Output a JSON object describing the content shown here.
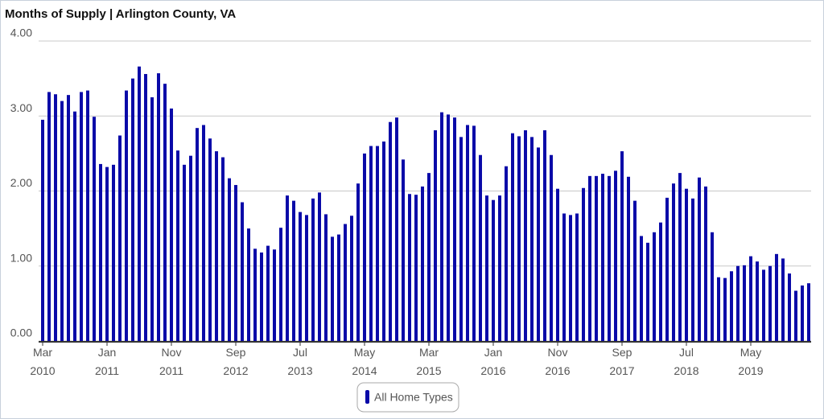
{
  "chart_data": {
    "type": "bar",
    "title": "Months of Supply | Arlington County, VA",
    "categories": [
      "Mar 2010",
      null,
      null,
      null,
      null,
      null,
      null,
      null,
      null,
      null,
      "Jan 2011",
      null,
      null,
      null,
      null,
      null,
      null,
      null,
      null,
      null,
      "Nov 2011",
      null,
      null,
      null,
      null,
      null,
      null,
      null,
      null,
      null,
      "Sep 2012",
      null,
      null,
      null,
      null,
      null,
      null,
      null,
      null,
      null,
      "Jul 2013",
      null,
      null,
      null,
      null,
      null,
      null,
      null,
      null,
      null,
      "May 2014",
      null,
      null,
      null,
      null,
      null,
      null,
      null,
      null,
      null,
      "Mar 2015",
      null,
      null,
      null,
      null,
      null,
      null,
      null,
      null,
      null,
      "Jan 2016",
      null,
      null,
      null,
      null,
      null,
      null,
      null,
      null,
      null,
      "Nov 2016",
      null,
      null,
      null,
      null,
      null,
      null,
      null,
      null,
      null,
      "Sep 2017",
      null,
      null,
      null,
      null,
      null,
      null,
      null,
      null,
      null,
      "Jul 2018",
      null,
      null,
      null,
      null,
      null,
      null,
      null,
      null,
      null,
      "May 2019",
      null,
      null,
      null,
      null,
      null,
      null,
      null,
      null,
      null
    ],
    "series": [
      {
        "name": "All Home Types",
        "color": "#0a0aa8",
        "values": [
          2.95,
          3.32,
          3.29,
          3.2,
          3.28,
          3.06,
          3.32,
          3.34,
          2.99,
          2.36,
          2.32,
          2.35,
          2.74,
          3.34,
          3.5,
          3.66,
          3.56,
          3.25,
          3.57,
          3.43,
          3.1,
          2.54,
          2.35,
          2.47,
          2.84,
          2.88,
          2.7,
          2.53,
          2.45,
          2.17,
          2.08,
          1.85,
          1.5,
          1.23,
          1.18,
          1.27,
          1.22,
          1.51,
          1.94,
          1.87,
          1.72,
          1.68,
          1.9,
          1.98,
          1.69,
          1.39,
          1.42,
          1.56,
          1.67,
          2.1,
          2.5,
          2.6,
          2.6,
          2.66,
          2.92,
          2.98,
          2.42,
          1.96,
          1.95,
          2.06,
          2.24,
          2.81,
          3.05,
          3.02,
          2.98,
          2.72,
          2.88,
          2.87,
          2.48,
          1.94,
          1.88,
          1.94,
          2.33,
          2.77,
          2.73,
          2.81,
          2.72,
          2.58,
          2.81,
          2.48,
          2.03,
          1.7,
          1.68,
          1.7,
          2.04,
          2.2,
          2.2,
          2.23,
          2.2,
          2.27,
          2.53,
          2.19,
          1.87,
          1.4,
          1.31,
          1.45,
          1.58,
          1.91,
          2.1,
          2.24,
          2.03,
          1.9,
          2.18,
          2.06,
          1.45,
          0.85,
          0.84,
          0.93,
          1.0,
          1.01,
          1.13,
          1.06,
          0.95,
          1.0,
          1.16,
          1.1,
          0.9,
          0.67,
          0.74,
          0.77
        ]
      }
    ],
    "ylim": [
      0,
      4
    ],
    "yticks": [
      {
        "value": 0,
        "label": "0.00"
      },
      {
        "value": 1,
        "label": "1.00"
      },
      {
        "value": 2,
        "label": "2.00"
      },
      {
        "value": 3,
        "label": "3.00"
      },
      {
        "value": 4,
        "label": "4.00"
      }
    ],
    "grid": true
  }
}
